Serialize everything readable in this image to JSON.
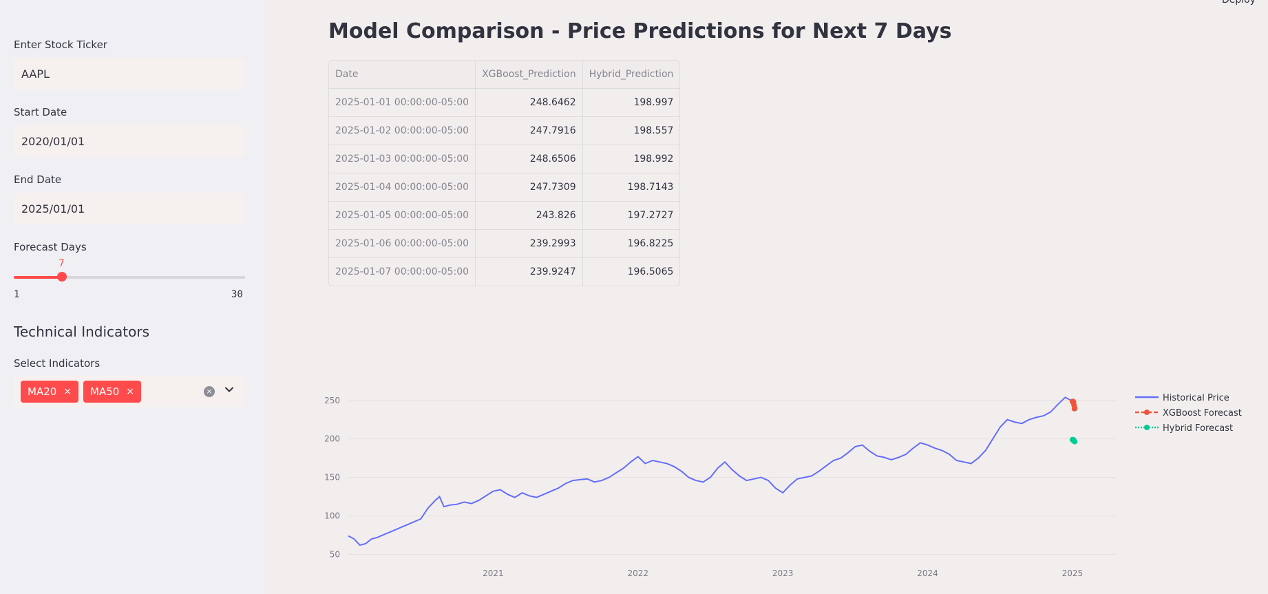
{
  "sidebar": {
    "ticker_label": "Enter Stock Ticker",
    "ticker_value": "AAPL",
    "start_label": "Start Date",
    "start_value": "2020/01/01",
    "end_label": "End Date",
    "end_value": "2025/01/01",
    "forecast_label": "Forecast Days",
    "forecast_value": 7,
    "forecast_value_text": "7",
    "forecast_min": "1",
    "forecast_max": "30",
    "tech_heading": "Technical Indicators",
    "indicators_label": "Select Indicators",
    "indicators": [
      "MA20",
      "MA50"
    ],
    "tag_remove_glyph": "×",
    "clear_glyph": "×"
  },
  "header": {
    "deploy_label": "Deploy"
  },
  "main": {
    "title": "Model Comparison - Price Predictions for Next 7 Days",
    "table": {
      "columns": [
        "Date",
        "XGBoost_Prediction",
        "Hybrid_Prediction"
      ],
      "rows": [
        [
          "2025-01-01 00:00:00-05:00",
          "248.6462",
          "198.997"
        ],
        [
          "2025-01-02 00:00:00-05:00",
          "247.7916",
          "198.557"
        ],
        [
          "2025-01-03 00:00:00-05:00",
          "248.6506",
          "198.992"
        ],
        [
          "2025-01-04 00:00:00-05:00",
          "247.7309",
          "198.7143"
        ],
        [
          "2025-01-05 00:00:00-05:00",
          "243.826",
          "197.2727"
        ],
        [
          "2025-01-06 00:00:00-05:00",
          "239.2993",
          "196.8225"
        ],
        [
          "2025-01-07 00:00:00-05:00",
          "239.9247",
          "196.5065"
        ]
      ]
    }
  },
  "chart_data": {
    "type": "line",
    "title": "",
    "xlabel": "",
    "ylabel": "",
    "xlim": [
      2020.0,
      2025.3
    ],
    "ylim": [
      45,
      265
    ],
    "x_ticks": [
      2021,
      2022,
      2023,
      2024,
      2025
    ],
    "x_tick_labels": [
      "2021",
      "2022",
      "2023",
      "2024",
      "2025"
    ],
    "y_ticks": [
      50,
      100,
      150,
      200,
      250
    ],
    "y_tick_labels": [
      "50",
      "100",
      "150",
      "200",
      "250"
    ],
    "grid": true,
    "legend_position": "top-right",
    "series": [
      {
        "name": "Historical Price",
        "color": "#636efa",
        "style": "solid",
        "x": [
          2020.0,
          2020.04,
          2020.08,
          2020.12,
          2020.16,
          2020.2,
          2020.25,
          2020.3,
          2020.35,
          2020.4,
          2020.45,
          2020.5,
          2020.55,
          2020.6,
          2020.63,
          2020.66,
          2020.7,
          2020.75,
          2020.8,
          2020.85,
          2020.9,
          2020.95,
          2021.0,
          2021.05,
          2021.1,
          2021.15,
          2021.2,
          2021.25,
          2021.3,
          2021.35,
          2021.4,
          2021.45,
          2021.5,
          2021.55,
          2021.6,
          2021.65,
          2021.7,
          2021.75,
          2021.8,
          2021.85,
          2021.9,
          2021.95,
          2022.0,
          2022.05,
          2022.1,
          2022.15,
          2022.2,
          2022.25,
          2022.3,
          2022.35,
          2022.4,
          2022.45,
          2022.5,
          2022.55,
          2022.6,
          2022.65,
          2022.7,
          2022.75,
          2022.8,
          2022.85,
          2022.9,
          2022.95,
          2023.0,
          2023.05,
          2023.1,
          2023.15,
          2023.2,
          2023.25,
          2023.3,
          2023.35,
          2023.4,
          2023.45,
          2023.5,
          2023.55,
          2023.6,
          2023.65,
          2023.7,
          2023.75,
          2023.8,
          2023.85,
          2023.9,
          2023.95,
          2024.0,
          2024.05,
          2024.1,
          2024.15,
          2024.2,
          2024.25,
          2024.3,
          2024.35,
          2024.4,
          2024.45,
          2024.5,
          2024.55,
          2024.6,
          2024.65,
          2024.7,
          2024.75,
          2024.8,
          2024.85,
          2024.9,
          2024.95,
          2024.99
        ],
        "y": [
          74,
          70,
          62,
          64,
          70,
          72,
          76,
          80,
          84,
          88,
          92,
          96,
          110,
          120,
          125,
          112,
          114,
          115,
          118,
          116,
          120,
          126,
          132,
          134,
          128,
          124,
          130,
          126,
          124,
          128,
          132,
          136,
          142,
          146,
          147,
          148,
          144,
          146,
          150,
          156,
          162,
          170,
          177,
          168,
          172,
          170,
          168,
          164,
          158,
          150,
          146,
          144,
          150,
          162,
          170,
          160,
          152,
          146,
          148,
          150,
          146,
          136,
          130,
          140,
          148,
          150,
          152,
          158,
          165,
          172,
          175,
          182,
          190,
          192,
          184,
          178,
          176,
          173,
          176,
          180,
          188,
          195,
          192,
          188,
          185,
          180,
          172,
          170,
          168,
          175,
          185,
          200,
          215,
          225,
          222,
          220,
          225,
          228,
          230,
          235,
          245,
          254,
          250
        ]
      },
      {
        "name": "XGBoost Forecast",
        "color": "#ef553b",
        "style": "dash",
        "x": [
          2025.0,
          2025.003,
          2025.005,
          2025.008,
          2025.011,
          2025.014,
          2025.016
        ],
        "y": [
          248.6462,
          247.7916,
          248.6506,
          247.7309,
          243.826,
          239.2993,
          239.9247
        ]
      },
      {
        "name": "Hybrid Forecast",
        "color": "#00cc96",
        "style": "dot",
        "x": [
          2025.0,
          2025.003,
          2025.005,
          2025.008,
          2025.011,
          2025.014,
          2025.016
        ],
        "y": [
          198.997,
          198.557,
          198.992,
          198.7143,
          197.2727,
          196.8225,
          196.5065
        ]
      }
    ]
  }
}
